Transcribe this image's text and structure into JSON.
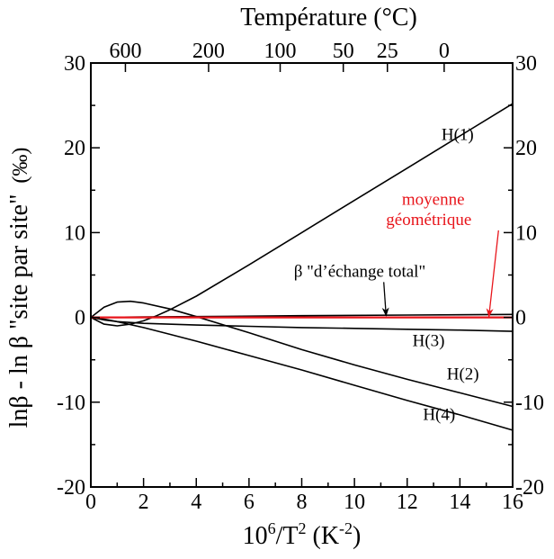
{
  "chart_data": {
    "type": "line",
    "xlabel_parts": {
      "base": "10",
      "sup1": "6",
      "mid": "/T",
      "sup2": "2",
      "unit_open": " (K",
      "unit_sup": "-2",
      "unit_close": ")"
    },
    "ylabel": "lnβ - ln β \"site par site\"",
    "ylabel_unit": "(‰)",
    "top_axis_label": "Température (°C)",
    "xlim": [
      0,
      16
    ],
    "ylim": [
      -20,
      30
    ],
    "x_ticks": [
      0,
      2,
      4,
      6,
      8,
      10,
      12,
      14,
      16
    ],
    "y_ticks": [
      -20,
      -10,
      0,
      10,
      20,
      30
    ],
    "top_ticks": [
      {
        "label": "600",
        "celsius": 600
      },
      {
        "label": "200",
        "celsius": 200
      },
      {
        "label": "100",
        "celsius": 100
      },
      {
        "label": "50",
        "celsius": 50
      },
      {
        "label": "25",
        "celsius": 25
      },
      {
        "label": "0",
        "celsius": 0
      }
    ],
    "series": [
      {
        "name": "H(1)",
        "color": "#000000",
        "x": [
          0,
          0.5,
          1,
          1.5,
          2,
          2.5,
          3,
          4,
          6,
          8,
          10,
          12,
          14,
          16
        ],
        "y": [
          0,
          -0.8,
          -1.0,
          -0.8,
          -0.4,
          0.2,
          0.9,
          2.5,
          6.2,
          10.0,
          13.8,
          17.6,
          21.4,
          25.2
        ]
      },
      {
        "name": "H(2)",
        "color": "#000000",
        "x": [
          0,
          0.5,
          1,
          1.5,
          2,
          3,
          4,
          6,
          8,
          10,
          12,
          14,
          16
        ],
        "y": [
          0,
          1.2,
          1.8,
          1.9,
          1.7,
          1.0,
          0.1,
          -1.8,
          -3.8,
          -5.6,
          -7.3,
          -8.9,
          -10.5
        ]
      },
      {
        "name": "H(3)",
        "color": "#000000",
        "x": [
          0,
          0.5,
          1,
          2,
          4,
          6,
          8,
          10,
          12,
          14,
          16
        ],
        "y": [
          0,
          -0.3,
          -0.5,
          -0.7,
          -0.9,
          -1.05,
          -1.2,
          -1.3,
          -1.4,
          -1.5,
          -1.65
        ]
      },
      {
        "name": "H(4)",
        "color": "#000000",
        "x": [
          0,
          0.5,
          1,
          2,
          3,
          4,
          6,
          8,
          10,
          12,
          14,
          16
        ],
        "y": [
          0,
          -0.2,
          -0.5,
          -1.2,
          -2.0,
          -2.8,
          -4.5,
          -6.2,
          -8.0,
          -9.8,
          -11.5,
          -13.3
        ]
      },
      {
        "name": "β \"d’échange total\"",
        "color": "#000000",
        "x": [
          0,
          2,
          4,
          8,
          12,
          16
        ],
        "y": [
          0,
          0.05,
          0.1,
          0.2,
          0.28,
          0.35
        ]
      },
      {
        "name": "moyenne géométrique",
        "color": "#e8151b",
        "x": [
          0,
          16
        ],
        "y": [
          0,
          0
        ]
      }
    ],
    "annotations": [
      {
        "text": "H(1)",
        "series": "H(1)",
        "x": 13.3,
        "y": 20.9,
        "color": "#000000"
      },
      {
        "text": "H(3)",
        "series": "H(3)",
        "x": 12.2,
        "y": -3.4,
        "color": "#000000"
      },
      {
        "text": "H(2)",
        "series": "H(2)",
        "x": 13.5,
        "y": -7.3,
        "color": "#000000"
      },
      {
        "text": "H(4)",
        "series": "H(4)",
        "x": 12.6,
        "y": -12.1,
        "color": "#000000"
      },
      {
        "text": "β \"d’échange total\"",
        "series": "β \"d’échange total\"",
        "x": 7.7,
        "y": 4.8,
        "color": "#000000",
        "arrow_to": [
          11.2,
          0.2
        ]
      },
      {
        "text": "moyenne",
        "series": "moyenne géométrique",
        "x": 11.8,
        "y": 13.3,
        "color": "#e8151b"
      },
      {
        "text": "géométrique",
        "series": "moyenne géométrique",
        "x": 11.2,
        "y": 10.9,
        "color": "#e8151b",
        "arrow_to": [
          15.1,
          0.1
        ]
      }
    ],
    "grid": false
  }
}
